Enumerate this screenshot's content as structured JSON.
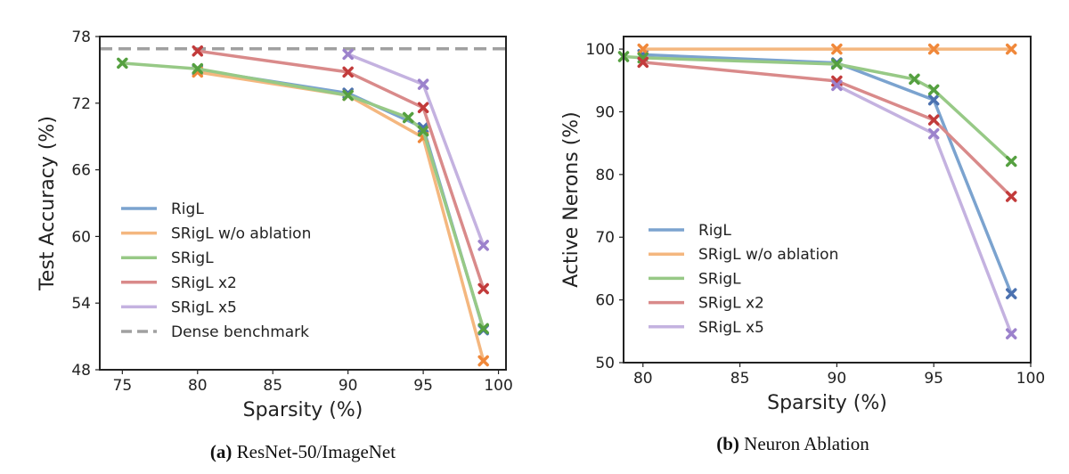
{
  "chart_data": [
    {
      "type": "line",
      "caption": {
        "tag": "(a)",
        "text": "ResNet-50/ImageNet"
      },
      "xlabel": "Sparsity (%)",
      "ylabel": "Test Accuracy (%)",
      "xlim": [
        73.5,
        100.5
      ],
      "ylim": [
        48,
        78
      ],
      "xticks": [
        75,
        80,
        85,
        90,
        95,
        100
      ],
      "yticks": [
        48,
        54,
        60,
        66,
        72,
        78
      ],
      "grid": false,
      "legend_position": "lower-left",
      "series": [
        {
          "name": "RigL",
          "color": "#7BA3CF",
          "marker_color": "#4C72B0",
          "x": [
            80,
            90,
            95,
            99
          ],
          "y": [
            75.0,
            72.9,
            69.8,
            51.6
          ]
        },
        {
          "name": "SRigL w/o ablation",
          "color": "#F4B77F",
          "marker_color": "#F0883A",
          "x": [
            80,
            90,
            95,
            99
          ],
          "y": [
            74.8,
            72.7,
            68.9,
            48.8
          ]
        },
        {
          "name": "SRigL",
          "color": "#97C986",
          "marker_color": "#55A040",
          "x": [
            75,
            80,
            90,
            94,
            95,
            99
          ],
          "y": [
            75.6,
            75.1,
            72.7,
            70.7,
            69.5,
            51.7
          ]
        },
        {
          "name": "SRigL x2",
          "color": "#D98A8A",
          "marker_color": "#C23B3B",
          "x": [
            80,
            90,
            95,
            99
          ],
          "y": [
            76.7,
            74.8,
            71.6,
            55.3
          ]
        },
        {
          "name": "SRigL x5",
          "color": "#C4B2E0",
          "marker_color": "#9C82CC",
          "x": [
            90,
            95,
            99
          ],
          "y": [
            76.4,
            73.7,
            59.2
          ]
        }
      ],
      "reference_line": {
        "name": "Dense benchmark",
        "y": 76.9,
        "color": "#A0A0A0"
      }
    },
    {
      "type": "line",
      "caption": {
        "tag": "(b)",
        "text": "Neuron Ablation"
      },
      "xlabel": "Sparsity (%)",
      "ylabel": "Active Nerons (%)",
      "xlim": [
        79,
        100
      ],
      "ylim": [
        50,
        102
      ],
      "xticks": [
        80,
        85,
        90,
        95,
        100
      ],
      "yticks": [
        50,
        60,
        70,
        80,
        90,
        100
      ],
      "grid": false,
      "legend_position": "lower-left",
      "series": [
        {
          "name": "RigL",
          "color": "#7BA3CF",
          "marker_color": "#4C72B0",
          "x": [
            80,
            90,
            95,
            99
          ],
          "y": [
            99.1,
            97.8,
            91.9,
            61.0
          ]
        },
        {
          "name": "SRigL w/o ablation",
          "color": "#F4B77F",
          "marker_color": "#F0883A",
          "x": [
            80,
            90,
            95,
            99
          ],
          "y": [
            100,
            100,
            100,
            100
          ]
        },
        {
          "name": "SRigL",
          "color": "#97C986",
          "marker_color": "#55A040",
          "x": [
            79,
            80,
            90,
            94,
            95,
            99
          ],
          "y": [
            98.8,
            98.6,
            97.6,
            95.2,
            93.5,
            82.1
          ]
        },
        {
          "name": "SRigL x2",
          "color": "#D98A8A",
          "marker_color": "#C23B3B",
          "x": [
            80,
            90,
            95,
            99
          ],
          "y": [
            97.9,
            94.9,
            88.7,
            76.5
          ]
        },
        {
          "name": "SRigL x5",
          "color": "#C4B2E0",
          "marker_color": "#9C82CC",
          "x": [
            90,
            95,
            99
          ],
          "y": [
            94.2,
            86.5,
            54.6
          ]
        }
      ]
    }
  ]
}
